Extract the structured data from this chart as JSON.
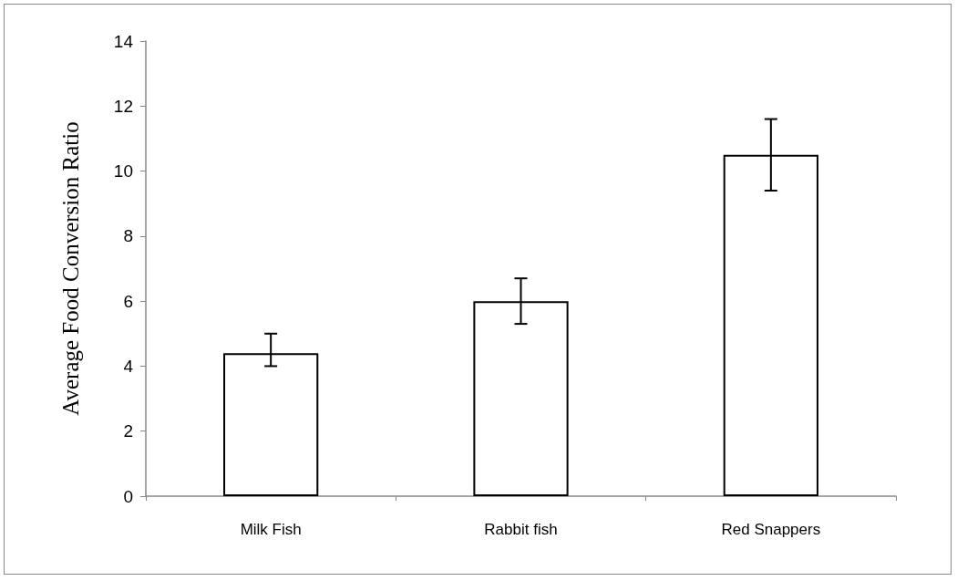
{
  "chart_data": {
    "type": "bar",
    "ylabel": "Average Food Conversion Ratio",
    "categories": [
      "Milk Fish",
      "Rabbit fish",
      "Red Snappers"
    ],
    "values": [
      4.4,
      6.0,
      10.5
    ],
    "errors": [
      [
        4.0,
        5.0
      ],
      0.7,
      1.1
    ],
    "color": "#ffffff",
    "ylim": [
      0,
      14
    ],
    "yticks": [
      0,
      2,
      4,
      6,
      8,
      10,
      12,
      14
    ],
    "grid": false
  }
}
